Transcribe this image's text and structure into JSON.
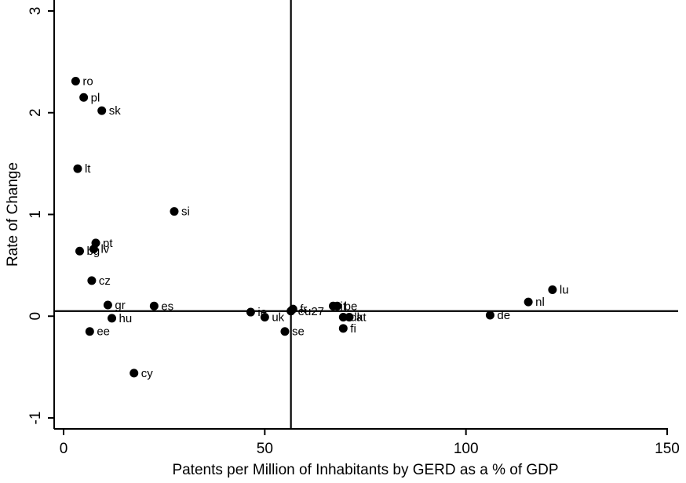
{
  "chart_data": {
    "type": "scatter",
    "xlabel": "Patents per Million of Inhabitants by GERD as a % of GDP",
    "ylabel": "Rate of Change",
    "xlim": [
      0,
      150
    ],
    "ylim": [
      -1,
      3
    ],
    "xticks": [
      0,
      50,
      100,
      150
    ],
    "yticks": [
      -1,
      0,
      1,
      2,
      3
    ],
    "reference_lines": {
      "x": 56.5,
      "y": 0.05
    },
    "grid": false,
    "marker_color": "#000000",
    "points": [
      {
        "label": "ro",
        "x": 3.0,
        "y": 2.31
      },
      {
        "label": "pl",
        "x": 5.0,
        "y": 2.15
      },
      {
        "label": "sk",
        "x": 9.5,
        "y": 2.02
      },
      {
        "label": "lt",
        "x": 3.5,
        "y": 1.45
      },
      {
        "label": "si",
        "x": 27.5,
        "y": 1.03
      },
      {
        "label": "pt",
        "x": 8.0,
        "y": 0.72
      },
      {
        "label": "bg",
        "x": 4.0,
        "y": 0.64
      },
      {
        "label": "lv",
        "x": 7.5,
        "y": 0.66
      },
      {
        "label": "cz",
        "x": 7.0,
        "y": 0.35
      },
      {
        "label": "gr",
        "x": 11.0,
        "y": 0.11
      },
      {
        "label": "es",
        "x": 22.5,
        "y": 0.1
      },
      {
        "label": "hu",
        "x": 12.0,
        "y": -0.02
      },
      {
        "label": "ee",
        "x": 6.5,
        "y": -0.15
      },
      {
        "label": "cy",
        "x": 17.5,
        "y": -0.56
      },
      {
        "label": "ie",
        "x": 46.5,
        "y": 0.04
      },
      {
        "label": "uk",
        "x": 50.0,
        "y": -0.01
      },
      {
        "label": "eu27",
        "x": 56.5,
        "y": 0.05
      },
      {
        "label": "fr",
        "x": 57.0,
        "y": 0.07
      },
      {
        "label": "se",
        "x": 55.0,
        "y": -0.15
      },
      {
        "label": "it",
        "x": 67.0,
        "y": 0.1
      },
      {
        "label": "be",
        "x": 68.0,
        "y": 0.1
      },
      {
        "label": "dk",
        "x": 69.5,
        "y": -0.01
      },
      {
        "label": "at",
        "x": 71.0,
        "y": -0.01
      },
      {
        "label": "fi",
        "x": 69.5,
        "y": -0.12
      },
      {
        "label": "de",
        "x": 106.0,
        "y": 0.01
      },
      {
        "label": "nl",
        "x": 115.5,
        "y": 0.14
      },
      {
        "label": "lu",
        "x": 121.5,
        "y": 0.26
      }
    ]
  }
}
